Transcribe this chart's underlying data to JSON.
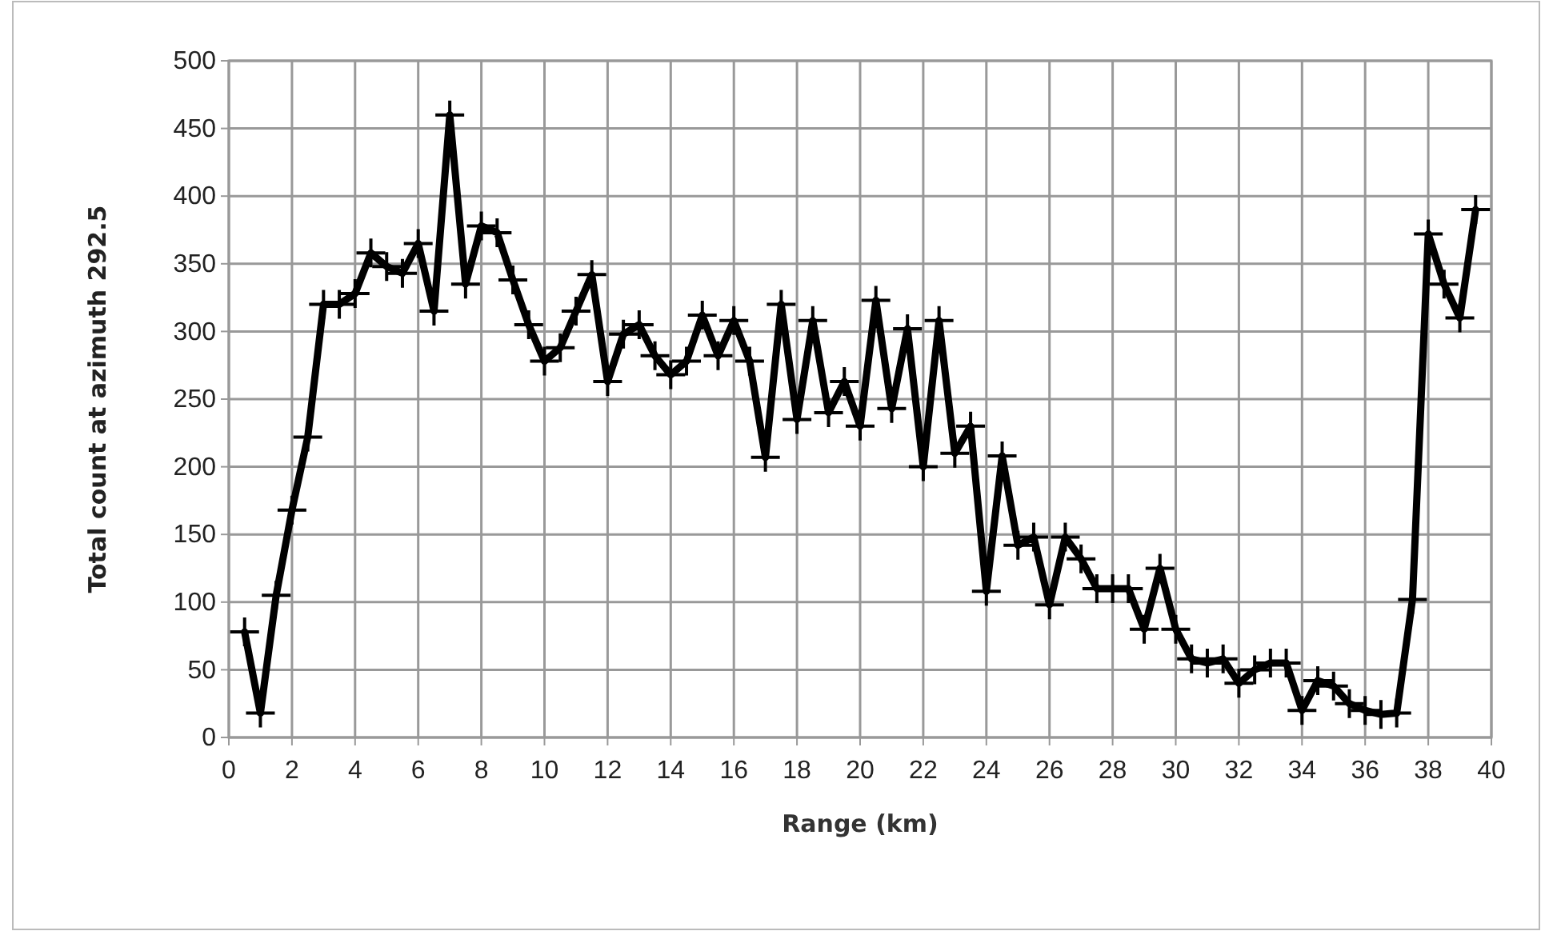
{
  "chart_data": {
    "type": "line",
    "xlabel": "Range (km)",
    "ylabel": "Total count at azimuth  292.5",
    "x": [
      0.5,
      1,
      1.5,
      2,
      2.5,
      3,
      3.5,
      4,
      4.5,
      5,
      5.5,
      6,
      6.5,
      7,
      7.5,
      8,
      8.5,
      9,
      9.5,
      10,
      10.5,
      11,
      11.5,
      12,
      12.5,
      13,
      13.5,
      14,
      14.5,
      15,
      15.5,
      16,
      16.5,
      17,
      17.5,
      18,
      18.5,
      19,
      19.5,
      20,
      20.5,
      21,
      21.5,
      22,
      22.5,
      23,
      23.5,
      24,
      24.5,
      25,
      25.5,
      26,
      26.5,
      27,
      27.5,
      28,
      28.5,
      29,
      29.5,
      30,
      30.5,
      31,
      31.5,
      32,
      32.5,
      33,
      33.5,
      34,
      34.5,
      35,
      35.5,
      36,
      36.5,
      37,
      37.5,
      38,
      38.5,
      39,
      39.5
    ],
    "series": [
      {
        "color": "#000000",
        "values": [
          78,
          18,
          105,
          168,
          222,
          320,
          320,
          328,
          358,
          348,
          343,
          365,
          315,
          460,
          335,
          378,
          373,
          338,
          305,
          278,
          288,
          315,
          342,
          263,
          298,
          305,
          282,
          268,
          278,
          312,
          282,
          308,
          278,
          207,
          320,
          235,
          308,
          240,
          263,
          230,
          323,
          243,
          302,
          200,
          308,
          210,
          230,
          108,
          208,
          142,
          148,
          98,
          148,
          132,
          110,
          110,
          110,
          80,
          125,
          80,
          58,
          55,
          58,
          40,
          50,
          55,
          55,
          20,
          42,
          38,
          25,
          20,
          17,
          18,
          102,
          372,
          335,
          310,
          390
        ]
      }
    ],
    "xlim": [
      0,
      40
    ],
    "xticks": [
      0,
      2,
      4,
      6,
      8,
      10,
      12,
      14,
      16,
      18,
      20,
      22,
      24,
      26,
      28,
      30,
      32,
      34,
      36,
      38,
      40
    ],
    "ylim": [
      0,
      500
    ],
    "yticks": [
      0,
      50,
      100,
      150,
      200,
      250,
      300,
      350,
      400,
      450,
      500
    ],
    "grid": true,
    "marker": "cross",
    "line_style": "solid"
  }
}
